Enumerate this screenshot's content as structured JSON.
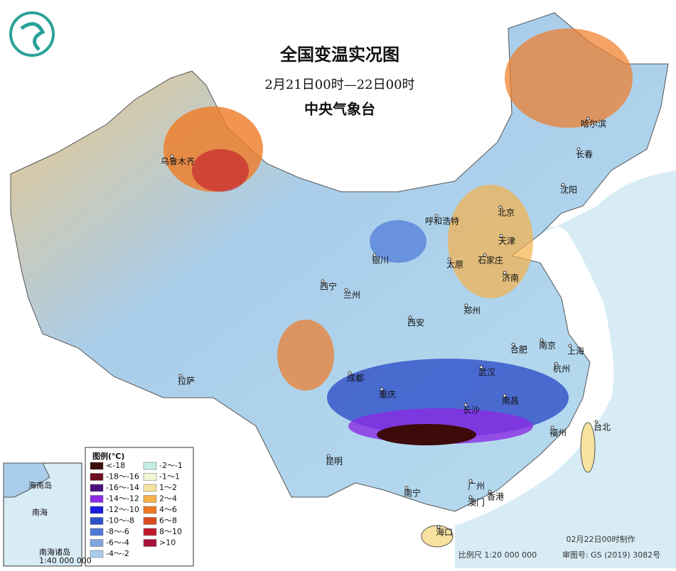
{
  "header": {
    "title": "全国变温实况图",
    "subtitle": "2月21日00时—22日00时",
    "agency": "中央气象台"
  },
  "cities": [
    "乌鲁木齐",
    "哈尔滨",
    "长春",
    "沈阳",
    "呼和浩特",
    "北京",
    "天津",
    "银川",
    "太原",
    "石家庄",
    "济南",
    "西宁",
    "兰州",
    "郑州",
    "西安",
    "合肥",
    "南京",
    "上海",
    "成都",
    "武汉",
    "杭州",
    "拉萨",
    "重庆",
    "南昌",
    "长沙",
    "福州",
    "台北",
    "昆明",
    "广州",
    "南宁",
    "香港",
    "澳门",
    "海口"
  ],
  "legend": {
    "title": "图例(℃)",
    "items": [
      {
        "label": "<-18",
        "color": "#3d0a0a"
      },
      {
        "label": "-18～-16",
        "color": "#6b0f1e"
      },
      {
        "label": "-16～-14",
        "color": "#4b1080"
      },
      {
        "label": "-14～-12",
        "color": "#8a2be2"
      },
      {
        "label": "-12～-10",
        "color": "#1c1ce0"
      },
      {
        "label": "-10～-8",
        "color": "#2f4fc8"
      },
      {
        "label": "-8～-6",
        "color": "#4c78d8"
      },
      {
        "label": "-6～-4",
        "color": "#7fa6dc"
      },
      {
        "label": "-4～-2",
        "color": "#a9cdea"
      },
      {
        "label": "-2～-1",
        "color": "#c6ece6"
      },
      {
        "label": "-1～1",
        "color": "#f2f6d2"
      },
      {
        "label": "1～2",
        "color": "#f7e2a0"
      },
      {
        "label": "2～4",
        "color": "#f5b04a"
      },
      {
        "label": "4～6",
        "color": "#ef7a25"
      },
      {
        "label": "6～8",
        "color": "#d94a1e"
      },
      {
        "label": "8～10",
        "color": "#c0182a"
      },
      {
        "label": ">10",
        "color": "#a8103a"
      }
    ]
  },
  "inset": {
    "island": "海南岛",
    "sea": "南海",
    "islands": "南海诸岛",
    "scale": "1:40 000 000"
  },
  "footer": {
    "issued": "02月22日00时制作",
    "scale": "比例尺 1:20 000 000",
    "approval": "审图号: GS (2019) 3082号"
  }
}
